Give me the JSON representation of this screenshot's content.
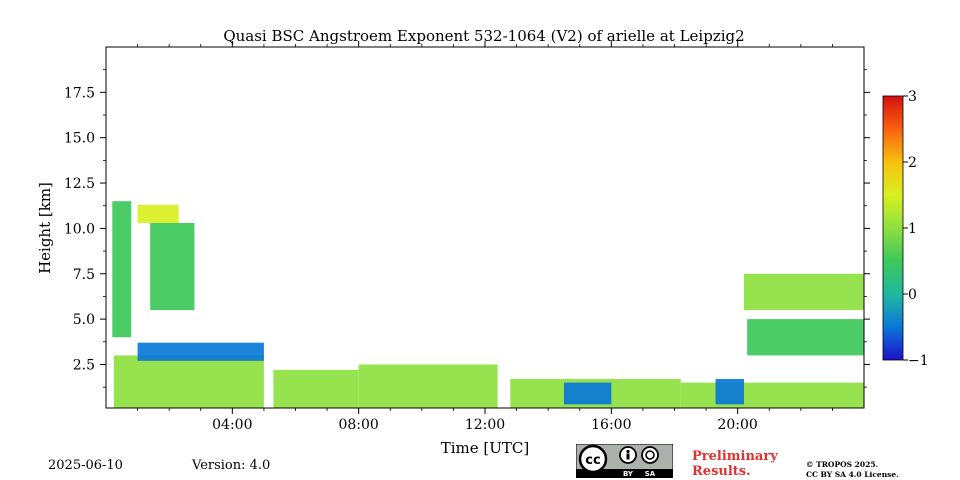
{
  "chart_data": {
    "type": "heatmap",
    "title": "Quasi BSC Angstroem Exponent 532-1064 (V2) of arielle at Leipzig2",
    "xlabel": "Time [UTC]",
    "ylabel": "Height [km]",
    "xlim_hours": [
      0,
      24
    ],
    "ylim_km": [
      0.1,
      20
    ],
    "x_ticks": [
      {
        "value": 4,
        "label": "04:00"
      },
      {
        "value": 8,
        "label": "08:00"
      },
      {
        "value": 12,
        "label": "12:00"
      },
      {
        "value": 16,
        "label": "16:00"
      },
      {
        "value": 20,
        "label": "20:00"
      }
    ],
    "y_ticks": [
      {
        "value": 2.5,
        "label": "2.5"
      },
      {
        "value": 5.0,
        "label": "5.0"
      },
      {
        "value": 7.5,
        "label": "7.5"
      },
      {
        "value": 10.0,
        "label": "10.0"
      },
      {
        "value": 12.5,
        "label": "12.5"
      },
      {
        "value": 15.0,
        "label": "15.0"
      },
      {
        "value": 17.5,
        "label": "17.5"
      }
    ],
    "colorbar": {
      "min": -1,
      "max": 3,
      "ticks": [
        {
          "value": -1,
          "label": "−1"
        },
        {
          "value": 0,
          "label": "0"
        },
        {
          "value": 1,
          "label": "1"
        },
        {
          "value": 2,
          "label": "2"
        },
        {
          "value": 3,
          "label": "3"
        }
      ],
      "colors": [
        "#1f10c8",
        "#0a78d8",
        "#20b8a0",
        "#3cc85a",
        "#8ee040",
        "#d8f020",
        "#f8c010",
        "#f86010",
        "#d81010"
      ]
    },
    "regions": [
      {
        "name": "boundary-layer-night",
        "t0": 0.25,
        "t1": 5.0,
        "h0": 0.1,
        "h1": 3.0,
        "value": 1.0
      },
      {
        "name": "residual-layer-top",
        "t0": 1.0,
        "t1": 5.0,
        "h0": 2.7,
        "h1": 3.7,
        "value": -0.4
      },
      {
        "name": "boundary-layer-morning",
        "t0": 5.3,
        "t1": 8.0,
        "h0": 0.1,
        "h1": 2.2,
        "value": 1.1
      },
      {
        "name": "boundary-layer-midday",
        "t0": 8.0,
        "t1": 12.4,
        "h0": 0.1,
        "h1": 2.5,
        "value": 1.0
      },
      {
        "name": "boundary-layer-afternoon",
        "t0": 12.8,
        "t1": 18.2,
        "h0": 0.1,
        "h1": 1.7,
        "value": 0.9
      },
      {
        "name": "afternoon-low-values",
        "t0": 14.5,
        "t1": 16.0,
        "h0": 0.3,
        "h1": 1.5,
        "value": -0.6
      },
      {
        "name": "evening-layer",
        "t0": 18.2,
        "t1": 24.0,
        "h0": 0.1,
        "h1": 1.5,
        "value": 1.0
      },
      {
        "name": "evening-low-values",
        "t0": 19.3,
        "t1": 20.2,
        "h0": 0.3,
        "h1": 1.7,
        "value": -0.7
      },
      {
        "name": "cirrus-upper-layer",
        "t0": 1.0,
        "t1": 2.3,
        "h0": 10.3,
        "h1": 11.3,
        "value": 1.4
      },
      {
        "name": "cirrus-fall-streak",
        "t0": 1.4,
        "t1": 2.8,
        "h0": 5.5,
        "h1": 10.3,
        "value": 0.3
      },
      {
        "name": "night-aerosol-column",
        "t0": 0.2,
        "t1": 0.8,
        "h0": 4.0,
        "h1": 11.5,
        "value": 0.6
      },
      {
        "name": "evening-aerosol-layer",
        "t0": 20.2,
        "t1": 24.0,
        "h0": 5.5,
        "h1": 7.5,
        "value": 1.1
      },
      {
        "name": "evening-lower-band",
        "t0": 20.3,
        "t1": 24.0,
        "h0": 3.0,
        "h1": 5.0,
        "value": 0.4
      }
    ]
  },
  "footer": {
    "date": "2025-06-10",
    "version": "Version: 4.0",
    "license_badge": {
      "cc": "cc",
      "by": "BY",
      "sa": "SA"
    },
    "preliminary_line1": "Preliminary",
    "preliminary_line2": "Results.",
    "copyright_line1": "© TROPOS 2025.",
    "copyright_line2": "CC BY SA 4.0 License."
  }
}
